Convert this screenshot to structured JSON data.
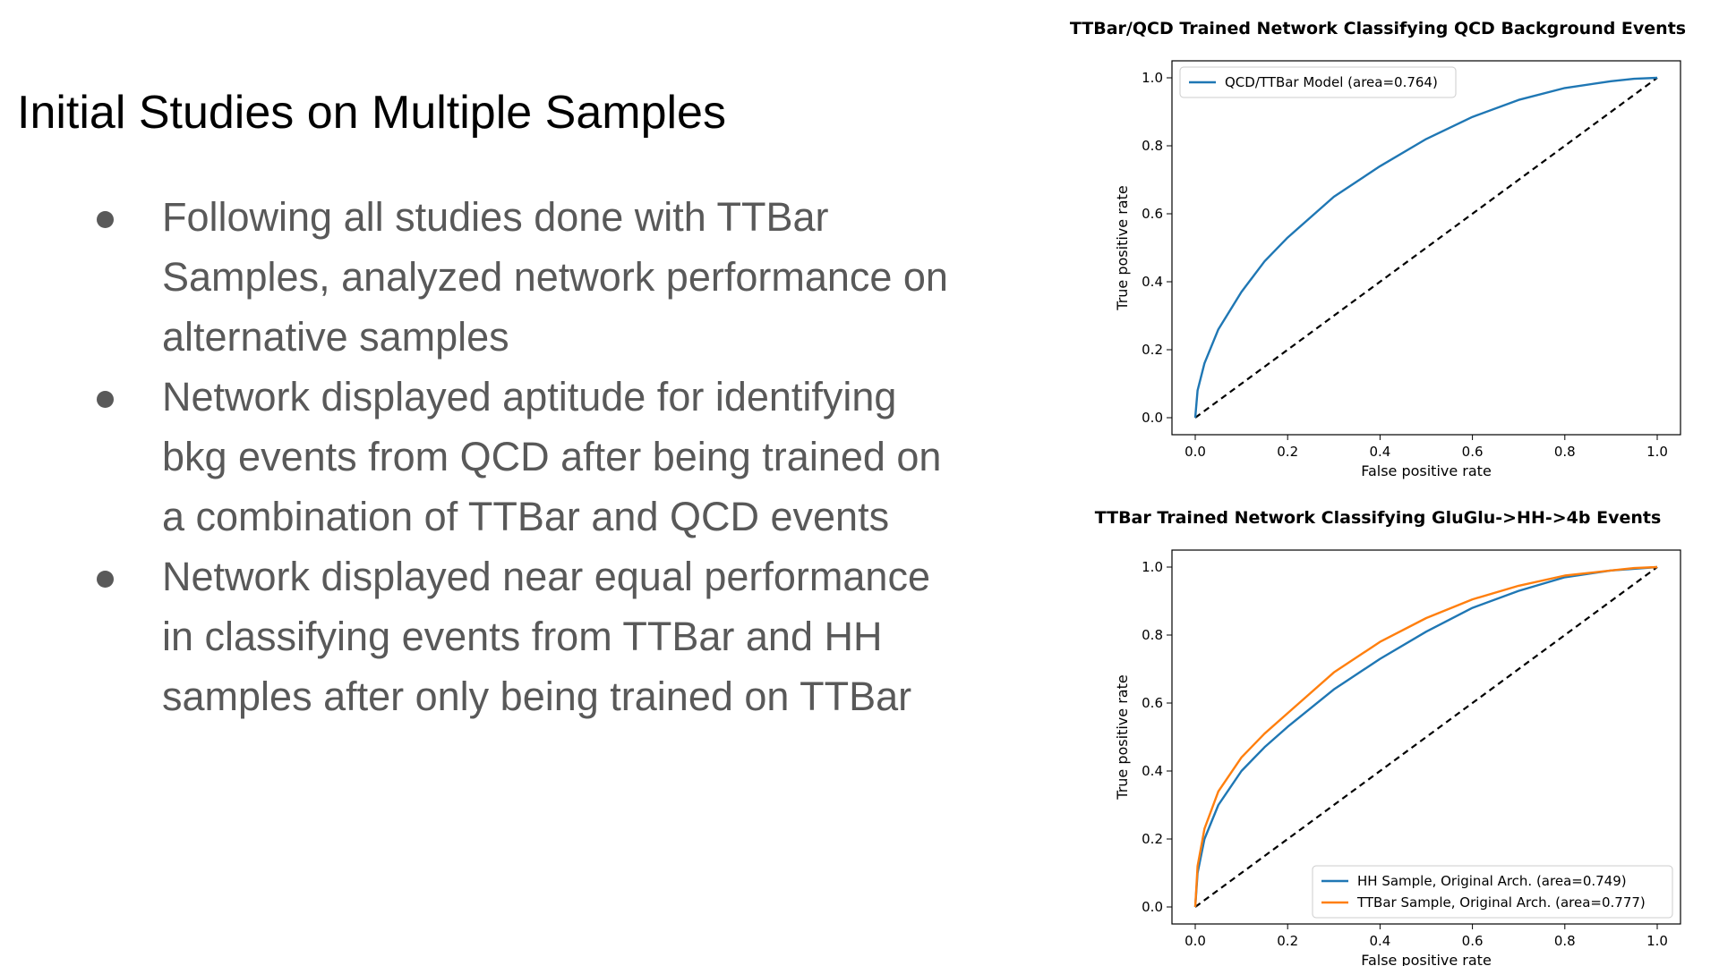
{
  "slide": {
    "title": "Initial Studies on Multiple Samples",
    "bullets": [
      {
        "lines": [
          "Following all studies done with TTBar",
          "Samples, analyzed network performance on",
          "alternative samples"
        ]
      },
      {
        "lines": [
          "Network displayed aptitude for identifying",
          "bkg events from QCD after being trained on",
          "a combination of TTBar and QCD events"
        ]
      },
      {
        "lines": [
          "Network displayed near equal performance",
          "in classifying events from TTBar and HH",
          "samples after only being trained on TTBar"
        ]
      }
    ]
  },
  "colors": {
    "text": "#595959",
    "blue": "#1f77b4",
    "orange": "#ff7f0e",
    "diagonal": "#000000"
  },
  "chart_data": [
    {
      "type": "line",
      "title": "TTBar/QCD Trained Network Classifying QCD Background Events",
      "xlabel": "False positive rate",
      "ylabel": "True positive rate",
      "xlim": [
        0.0,
        1.0
      ],
      "ylim": [
        0.0,
        1.0
      ],
      "xticks": [
        "0.0",
        "0.2",
        "0.4",
        "0.6",
        "0.8",
        "1.0"
      ],
      "yticks": [
        "0.0",
        "0.2",
        "0.4",
        "0.6",
        "0.8",
        "1.0"
      ],
      "grid": false,
      "legend_position": "top-left",
      "series": [
        {
          "name": "QCD/TTBar Model (area=0.764)",
          "color": "#1f77b4",
          "x": [
            0.0,
            0.005,
            0.02,
            0.05,
            0.1,
            0.15,
            0.2,
            0.3,
            0.4,
            0.5,
            0.6,
            0.7,
            0.8,
            0.9,
            0.95,
            1.0
          ],
          "y": [
            0.0,
            0.08,
            0.16,
            0.26,
            0.37,
            0.46,
            0.53,
            0.65,
            0.74,
            0.82,
            0.885,
            0.935,
            0.97,
            0.99,
            0.997,
            1.0
          ]
        }
      ],
      "reference_line": {
        "x": [
          0.0,
          1.0
        ],
        "y": [
          0.0,
          1.0
        ],
        "style": "dashed",
        "color": "#000000"
      }
    },
    {
      "type": "line",
      "title": "TTBar Trained Network Classifying GluGlu->HH->4b Events",
      "xlabel": "False positive rate",
      "ylabel": "True positive rate",
      "xlim": [
        0.0,
        1.0
      ],
      "ylim": [
        0.0,
        1.0
      ],
      "xticks": [
        "0.0",
        "0.2",
        "0.4",
        "0.6",
        "0.8",
        "1.0"
      ],
      "yticks": [
        "0.0",
        "0.2",
        "0.4",
        "0.6",
        "0.8",
        "1.0"
      ],
      "grid": false,
      "legend_position": "bottom-right",
      "series": [
        {
          "name": "HH Sample, Original Arch. (area=0.749)",
          "color": "#1f77b4",
          "x": [
            0.0,
            0.005,
            0.02,
            0.05,
            0.1,
            0.15,
            0.2,
            0.3,
            0.4,
            0.5,
            0.6,
            0.7,
            0.8,
            0.9,
            0.95,
            1.0
          ],
          "y": [
            0.0,
            0.1,
            0.2,
            0.3,
            0.4,
            0.47,
            0.53,
            0.64,
            0.73,
            0.81,
            0.88,
            0.93,
            0.97,
            0.99,
            0.995,
            1.0
          ]
        },
        {
          "name": "TTBar Sample, Original Arch. (area=0.777)",
          "color": "#ff7f0e",
          "x": [
            0.0,
            0.005,
            0.02,
            0.05,
            0.1,
            0.15,
            0.2,
            0.3,
            0.4,
            0.5,
            0.6,
            0.7,
            0.8,
            0.9,
            0.95,
            1.0
          ],
          "y": [
            0.0,
            0.12,
            0.23,
            0.34,
            0.44,
            0.51,
            0.57,
            0.69,
            0.78,
            0.85,
            0.905,
            0.945,
            0.975,
            0.99,
            0.997,
            1.0
          ]
        }
      ],
      "reference_line": {
        "x": [
          0.0,
          1.0
        ],
        "y": [
          0.0,
          1.0
        ],
        "style": "dashed",
        "color": "#000000"
      }
    }
  ]
}
